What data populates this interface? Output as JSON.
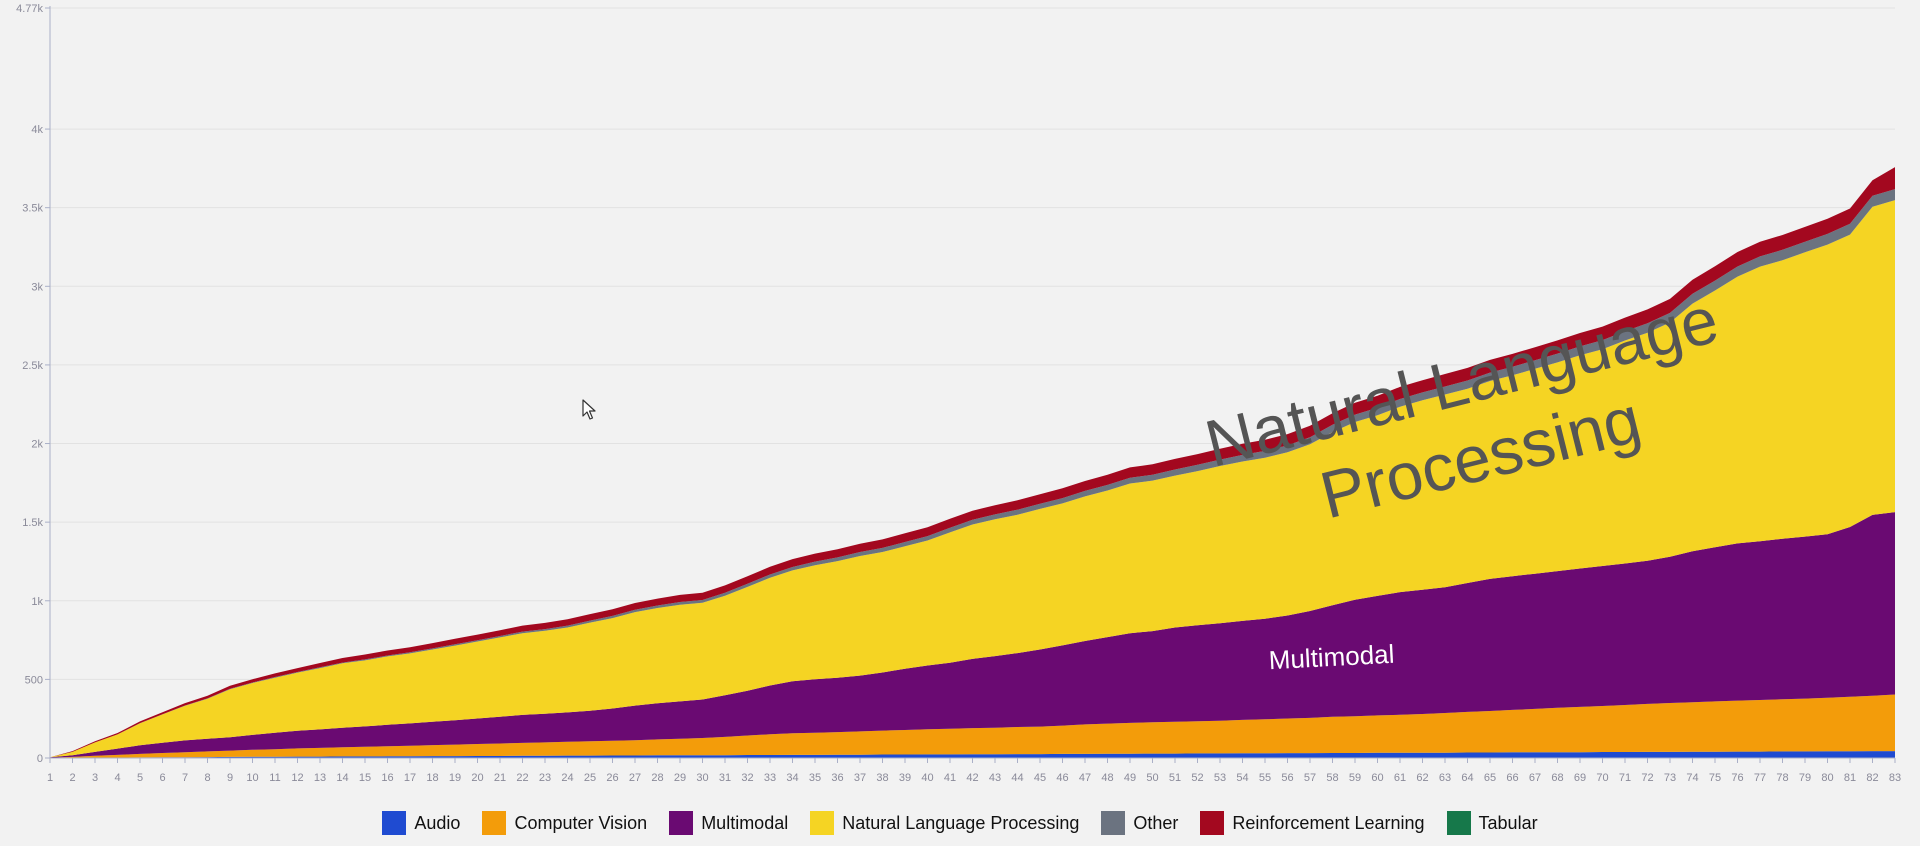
{
  "chart_data": {
    "type": "area",
    "stacked": true,
    "title": "",
    "xlabel": "",
    "ylabel": "",
    "x": [
      1,
      2,
      3,
      4,
      5,
      6,
      7,
      8,
      9,
      10,
      11,
      12,
      13,
      14,
      15,
      16,
      17,
      18,
      19,
      20,
      21,
      22,
      23,
      24,
      25,
      26,
      27,
      28,
      29,
      30,
      31,
      32,
      33,
      34,
      35,
      36,
      37,
      38,
      39,
      40,
      41,
      42,
      43,
      44,
      45,
      46,
      47,
      48,
      49,
      50,
      51,
      52,
      53,
      54,
      55,
      56,
      57,
      58,
      59,
      60,
      61,
      62,
      63,
      64,
      65,
      66,
      67,
      68,
      69,
      70,
      71,
      72,
      73,
      74,
      75,
      76,
      77,
      78,
      79,
      80,
      81,
      82,
      83
    ],
    "ylim": [
      0,
      4770
    ],
    "yticks": [
      0,
      500,
      1000,
      1500,
      2000,
      2500,
      3000,
      3500,
      4000,
      4770
    ],
    "ytick_labels": [
      "0",
      "500",
      "1k",
      "1.5k",
      "2k",
      "2.5k",
      "3k",
      "3.5k",
      "4k",
      "4.77k"
    ],
    "series": [
      {
        "name": "Audio",
        "color": "#1f4bd1",
        "values": [
          0,
          1,
          2,
          3,
          4,
          5,
          5,
          6,
          7,
          8,
          8,
          9,
          9,
          10,
          10,
          11,
          11,
          12,
          12,
          13,
          13,
          14,
          14,
          15,
          15,
          16,
          16,
          17,
          17,
          18,
          18,
          19,
          19,
          20,
          20,
          21,
          21,
          22,
          22,
          23,
          23,
          24,
          24,
          25,
          25,
          26,
          26,
          27,
          27,
          28,
          28,
          29,
          29,
          30,
          30,
          31,
          31,
          32,
          32,
          33,
          33,
          34,
          34,
          35,
          35,
          36,
          36,
          37,
          37,
          38,
          38,
          39,
          39,
          40,
          40,
          41,
          41,
          42,
          42,
          43,
          43,
          44,
          44
        ]
      },
      {
        "name": "Computer Vision",
        "color": "#f39c0a",
        "values": [
          2,
          6,
          12,
          17,
          22,
          27,
          32,
          36,
          40,
          44,
          48,
          52,
          55,
          58,
          61,
          64,
          67,
          70,
          73,
          76,
          79,
          82,
          85,
          88,
          91,
          94,
          97,
          101,
          105,
          109,
          116,
          124,
          132,
          138,
          141,
          144,
          148,
          152,
          156,
          160,
          163,
          166,
          169,
          172,
          175,
          180,
          188,
          192,
          196,
          199,
          202,
          205,
          208,
          212,
          216,
          220,
          224,
          230,
          234,
          238,
          242,
          246,
          252,
          258,
          264,
          270,
          276,
          282,
          288,
          293,
          299,
          305,
          311,
          315,
          320,
          324,
          328,
          332,
          336,
          340,
          346,
          352,
          360
        ]
      },
      {
        "name": "Multimodal",
        "color": "#6a0a72",
        "values": [
          3,
          10,
          25,
          40,
          55,
          65,
          75,
          80,
          85,
          95,
          105,
          112,
          118,
          124,
          130,
          136,
          142,
          148,
          155,
          162,
          170,
          178,
          182,
          187,
          195,
          205,
          220,
          230,
          238,
          245,
          265,
          285,
          310,
          330,
          340,
          345,
          355,
          370,
          390,
          405,
          420,
          440,
          455,
          470,
          490,
          510,
          530,
          550,
          570,
          580,
          600,
          610,
          620,
          630,
          640,
          655,
          680,
          710,
          740,
          760,
          780,
          790,
          800,
          820,
          840,
          850,
          860,
          870,
          880,
          890,
          900,
          910,
          930,
          960,
          980,
          1000,
          1010,
          1020,
          1030,
          1040,
          1080,
          1150,
          1160
        ]
      },
      {
        "name": "Natural Language Processing",
        "color": "#f5d423",
        "values": [
          0,
          22,
          60,
          90,
          140,
          180,
          220,
          255,
          305,
          330,
          350,
          370,
          390,
          410,
          420,
          435,
          445,
          460,
          475,
          490,
          505,
          520,
          528,
          540,
          560,
          575,
          595,
          606,
          615,
          615,
          633,
          660,
          685,
          705,
          725,
          742,
          761,
          766,
          779,
          795,
          829,
          855,
          870,
          880,
          894,
          903,
          920,
          932,
          953,
          957,
          966,
          981,
          1000,
          1014,
          1024,
          1038,
          1060,
          1101,
          1131,
          1149,
          1179,
          1205,
          1226,
          1236,
          1259,
          1278,
          1303,
          1327,
          1356,
          1379,
          1418,
          1451,
          1490,
          1575,
          1633,
          1697,
          1746,
          1772,
          1808,
          1842,
          1860,
          1960,
          1984
        ]
      },
      {
        "name": "Other",
        "color": "#6b7380",
        "values": [
          0,
          0,
          0,
          0,
          1,
          1,
          2,
          2,
          3,
          3,
          4,
          4,
          5,
          5,
          6,
          6,
          7,
          7,
          8,
          8,
          9,
          10,
          11,
          12,
          13,
          14,
          15,
          16,
          17,
          18,
          19,
          20,
          21,
          22,
          23,
          24,
          25,
          26,
          27,
          28,
          29,
          30,
          31,
          32,
          33,
          34,
          35,
          36,
          37,
          38,
          39,
          40,
          41,
          42,
          43,
          44,
          45,
          46,
          47,
          48,
          49,
          50,
          51,
          52,
          53,
          54,
          55,
          56,
          57,
          58,
          59,
          60,
          61,
          62,
          63,
          64,
          65,
          66,
          67,
          68,
          69,
          70,
          70
        ]
      },
      {
        "name": "Reinforcement Learning",
        "color": "#a3081f",
        "values": [
          0,
          5,
          7,
          9,
          11,
          13,
          15,
          17,
          19,
          21,
          23,
          25,
          27,
          29,
          31,
          32,
          33,
          34,
          35,
          36,
          37,
          38,
          39,
          40,
          41,
          42,
          43,
          44,
          45,
          46,
          47,
          48,
          49,
          50,
          51,
          52,
          53,
          54,
          55,
          56,
          57,
          58,
          59,
          60,
          61,
          62,
          63,
          64,
          65,
          66,
          67,
          68,
          69,
          70,
          71,
          72,
          73,
          74,
          75,
          76,
          77,
          78,
          79,
          80,
          81,
          82,
          83,
          84,
          85,
          86,
          87,
          88,
          89,
          90,
          91,
          92,
          93,
          94,
          95,
          96,
          97,
          98,
          140
        ]
      },
      {
        "name": "Tabular",
        "color": "#16784a",
        "values": [
          0,
          0,
          0,
          0,
          0,
          0,
          0,
          0,
          0,
          0,
          0,
          0,
          0,
          0,
          0,
          0,
          0,
          0,
          0,
          0,
          0,
          0,
          0,
          0,
          0,
          0,
          0,
          0,
          0,
          0,
          0,
          0,
          0,
          0,
          0,
          0,
          0,
          0,
          0,
          0,
          0,
          0,
          0,
          0,
          0,
          0,
          0,
          0,
          0,
          0,
          0,
          0,
          0,
          0,
          0,
          0,
          0,
          0,
          0,
          0,
          0,
          0,
          0,
          0,
          0,
          0,
          0,
          0,
          0,
          0,
          0,
          0,
          0,
          0,
          0,
          0,
          0,
          0,
          0,
          0,
          0,
          0,
          0
        ]
      }
    ],
    "annotations": [
      {
        "text": "Natural Language Processing"
      },
      {
        "text": "Multimodal"
      }
    ],
    "legend": "bottom-center"
  }
}
